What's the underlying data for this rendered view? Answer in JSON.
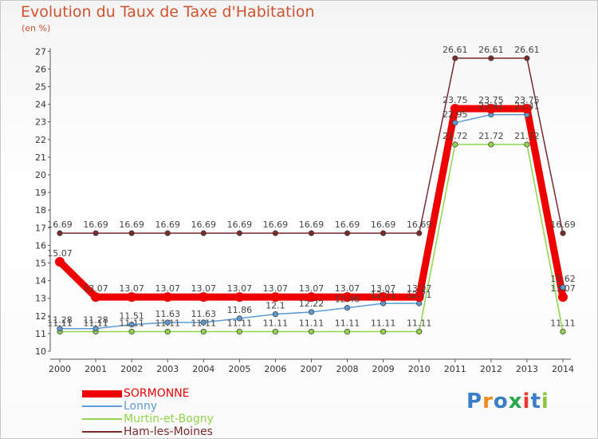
{
  "chart_data": {
    "type": "line",
    "title": "Evolution du Taux de Taxe d'Habitation",
    "unit_label": "(en %)",
    "x": [
      "2000",
      "2001",
      "2002",
      "2003",
      "2004",
      "2005",
      "2006",
      "2007",
      "2008",
      "2009",
      "2010",
      "2011",
      "2012",
      "2013",
      "2014"
    ],
    "ylim": [
      10,
      27
    ],
    "yticks": [
      10,
      11,
      12,
      13,
      14,
      15,
      16,
      17,
      18,
      19,
      20,
      21,
      22,
      23,
      24,
      25,
      26,
      27
    ],
    "grid": false,
    "legend_position": "bottom-left",
    "series": [
      {
        "name": "Ham-les-Moines",
        "color": "#7a2a2a",
        "values": [
          16.69,
          16.69,
          16.69,
          16.69,
          16.69,
          16.69,
          16.69,
          16.69,
          16.69,
          16.69,
          16.69,
          26.61,
          26.61,
          26.61,
          16.69
        ],
        "labels": [
          "16.69",
          "16.69",
          "16.69",
          "16.69",
          "16.69",
          "16.69",
          "16.69",
          "16.69",
          "16.69",
          "16.69",
          "16.69",
          "26.61",
          "26.61",
          "26.61",
          "16.69"
        ]
      },
      {
        "name": "Murtin-et-Bogny",
        "color": "#8fd44a",
        "values": [
          11.11,
          11.11,
          11.11,
          11.11,
          11.11,
          11.11,
          11.11,
          11.11,
          11.11,
          11.11,
          11.11,
          21.72,
          21.72,
          21.72,
          11.11
        ],
        "labels": [
          "11.11",
          "11.11",
          "11.11",
          "11.11",
          "11.11",
          "11.11",
          "11.11",
          "11.11",
          "11.11",
          "11.11",
          "11.11",
          "21.72",
          "21.72",
          "21.72",
          "11.11"
        ]
      },
      {
        "name": "Lonny",
        "color": "#5b9bd5",
        "values": [
          11.28,
          11.28,
          11.51,
          11.63,
          11.63,
          11.86,
          12.1,
          12.22,
          12.46,
          12.71,
          12.71,
          22.95,
          23.41,
          23.41,
          13.62
        ],
        "labels": [
          "11.28",
          "11.28",
          "11.51",
          "11.63",
          "11.63",
          "11.86",
          "12.1",
          "12.22",
          "12.46",
          "12.71",
          "12.71",
          "22.95",
          "23.41",
          "23.41",
          "13.62"
        ]
      },
      {
        "name": "SORMONNE",
        "color": "#ee0000",
        "values": [
          15.07,
          13.07,
          13.07,
          13.07,
          13.07,
          13.07,
          13.07,
          13.07,
          13.07,
          13.07,
          13.07,
          23.75,
          23.75,
          23.75,
          13.07
        ],
        "labels": [
          "15.07",
          "13.07",
          "13.07",
          "13.07",
          "13.07",
          "13.07",
          "13.07",
          "13.07",
          "13.07",
          "13.07",
          "13.07",
          "23.75",
          "23.75",
          "23.75",
          "13.07"
        ]
      }
    ]
  },
  "legend": [
    {
      "name": "SORMONNE",
      "color": "#ee0000",
      "thickness": 9
    },
    {
      "name": "Lonny",
      "color": "#5b9bd5",
      "thickness": 2
    },
    {
      "name": "Murtin-et-Bogny",
      "color": "#8fd44a",
      "thickness": 2
    },
    {
      "name": "Ham-les-Moines",
      "color": "#7a2a2a",
      "thickness": 2
    }
  ],
  "logo": {
    "letters": [
      "P",
      "r",
      "o",
      "x",
      "i",
      "t",
      "i"
    ],
    "colors": [
      "#3b7ec8",
      "#f08a1c",
      "#3b7ec8",
      "#2aa84a",
      "#e83b2e",
      "#3b7ec8",
      "#8cc63f"
    ]
  }
}
